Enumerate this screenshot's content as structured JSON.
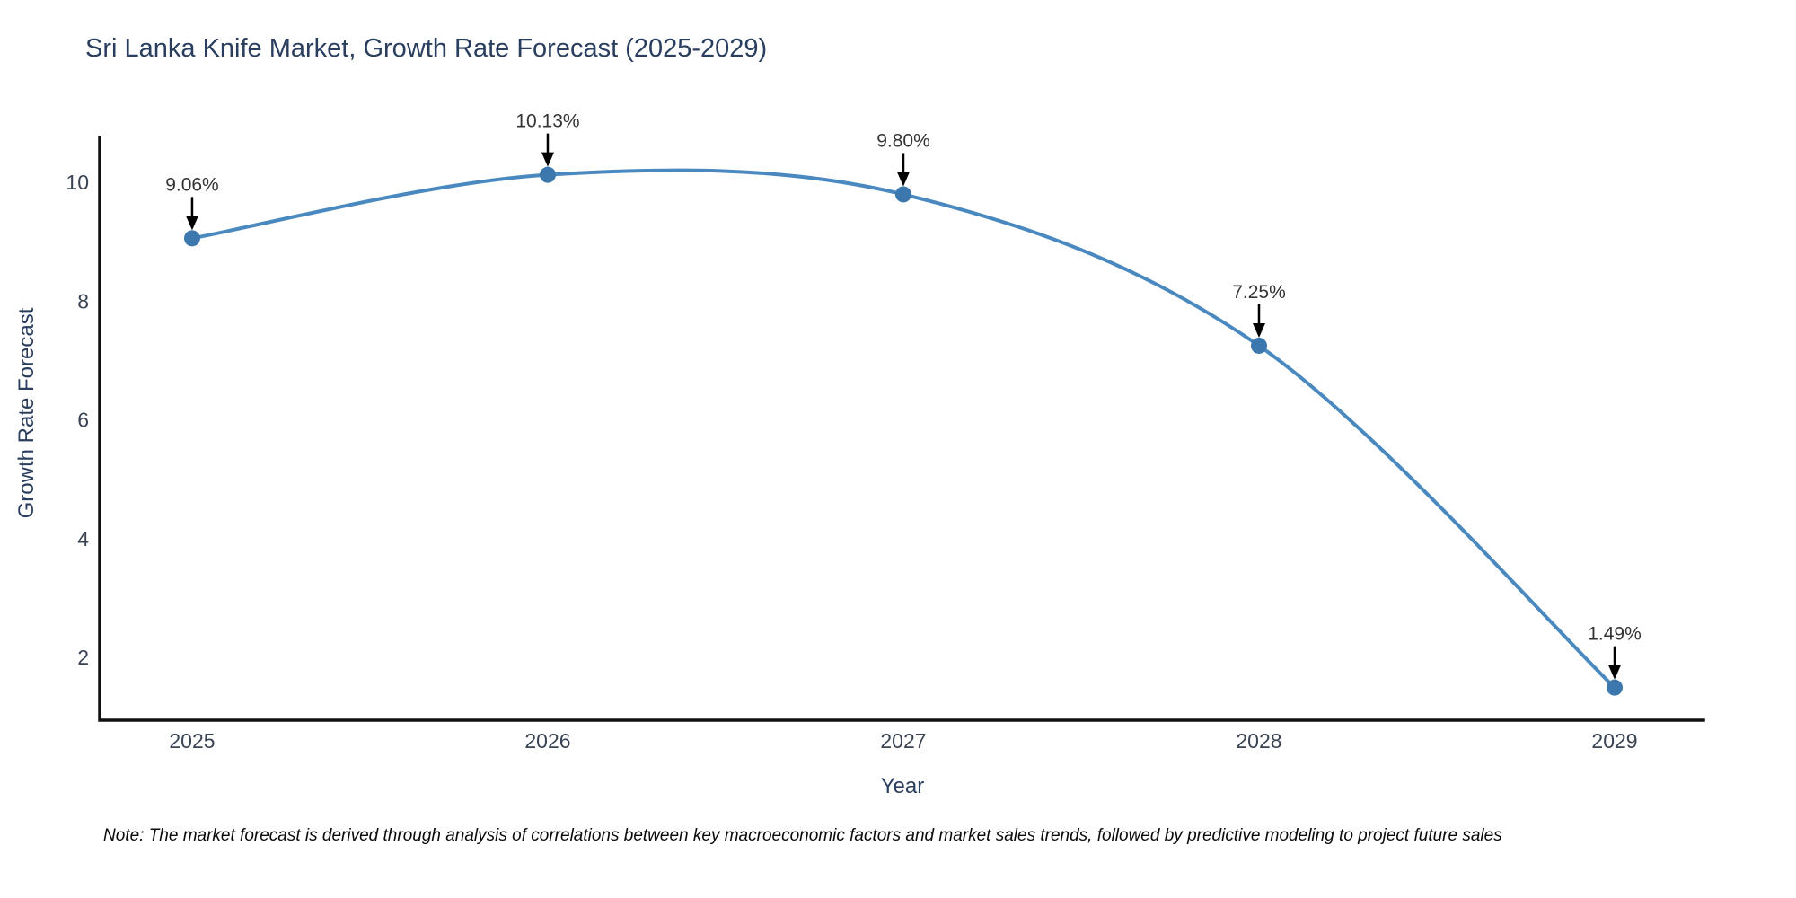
{
  "chart_data": {
    "type": "line",
    "title": "Sri Lanka Knife Market, Growth Rate Forecast (2025-2029)",
    "xlabel": "Year",
    "ylabel": "Growth Rate Forecast",
    "categories": [
      2025,
      2026,
      2027,
      2028,
      2029
    ],
    "values": [
      9.06,
      10.13,
      9.8,
      7.25,
      1.49
    ],
    "point_labels": [
      "9.06%",
      "10.13%",
      "9.80%",
      "7.25%",
      "1.49%"
    ],
    "y_ticks": [
      2,
      4,
      6,
      8,
      10
    ],
    "x_range": [
      2024.74,
      2029.25
    ],
    "y_range": [
      0.94,
      10.76
    ],
    "grid": false,
    "legend_position": "none",
    "line_color": "#4a89c0",
    "marker_color": "#3c77ad",
    "axis_color": "#111111",
    "arrow_color": "#000000",
    "note": "Note: The market forecast is derived through analysis of correlations between key macroeconomic factors and market sales trends, followed by predictive modeling to project future sales"
  }
}
